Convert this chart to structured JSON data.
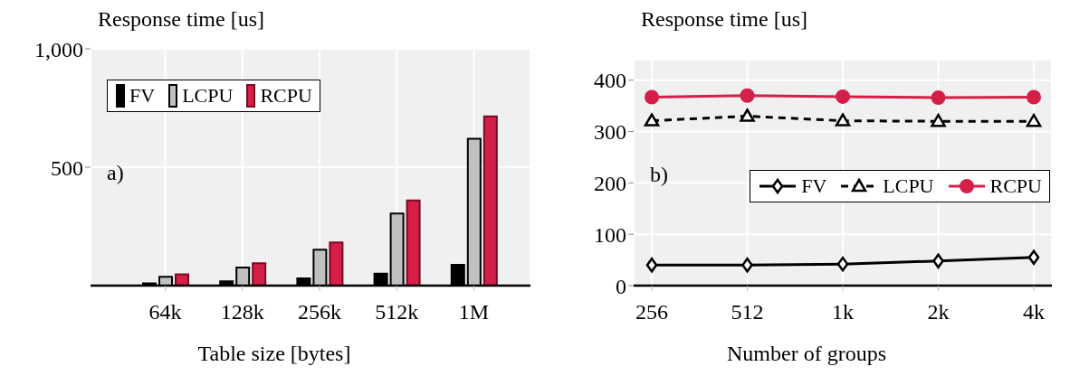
{
  "chart_data": [
    {
      "type": "bar",
      "ylabel": "Response time [us]",
      "xlabel": "Table size [bytes]",
      "categories": [
        "64k",
        "128k",
        "256k",
        "512k",
        "1M"
      ],
      "series": [
        {
          "name": "FV",
          "color": "#000000",
          "values": [
            10,
            18,
            31,
            51,
            88
          ]
        },
        {
          "name": "LCPU",
          "color": "#c0c0c0",
          "values": [
            37,
            76,
            152,
            304,
            620
          ]
        },
        {
          "name": "RCPU",
          "color": "#d41f48",
          "values": [
            48,
            94,
            182,
            360,
            715
          ]
        }
      ],
      "ylim": [
        0,
        1000
      ],
      "yticks": [
        {
          "value": 500,
          "label": "500"
        },
        {
          "value": 1000,
          "label": "1,000"
        }
      ],
      "grid": true,
      "legend": "top left",
      "annotations": [
        "a)"
      ]
    },
    {
      "type": "line",
      "ylabel": "Response time [us]",
      "xlabel": "Number of groups",
      "categories": [
        "256",
        "512",
        "1k",
        "2k",
        "4k"
      ],
      "series": [
        {
          "name": "FV",
          "color": "#000000",
          "marker": "diamond",
          "line_style": "solid",
          "values": [
            40,
            40,
            42,
            48,
            55
          ]
        },
        {
          "name": "LCPU",
          "color": "#000000",
          "marker": "triangle",
          "line_style": "dashed",
          "values": [
            321,
            330,
            321,
            320,
            320
          ]
        },
        {
          "name": "RCPU",
          "color": "#d41f48",
          "marker": "circle",
          "line_style": "solid",
          "values": [
            367,
            370,
            368,
            366,
            367
          ]
        }
      ],
      "ylim": [
        0,
        440
      ],
      "yticks": [
        0,
        100,
        200,
        300,
        400
      ],
      "grid": true,
      "legend": "right",
      "annotations": [
        "b)"
      ]
    }
  ]
}
